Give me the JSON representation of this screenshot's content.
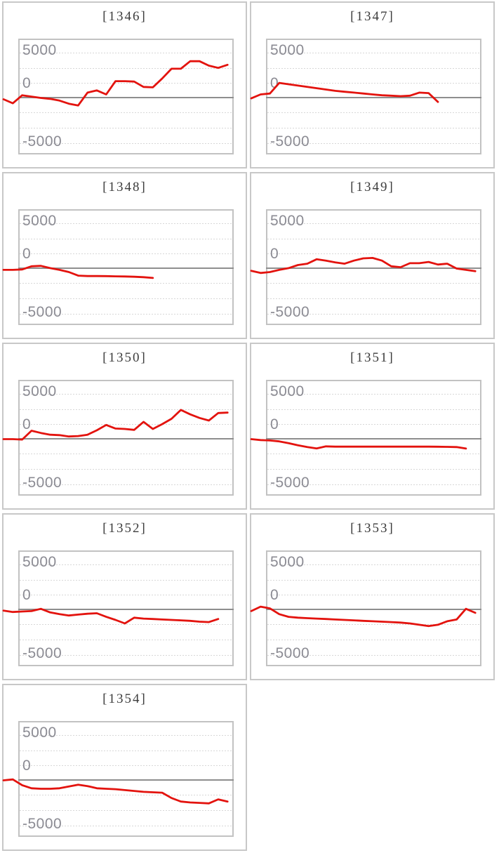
{
  "page": {
    "layout": "grid of 9 machine payout-difference line charts, 2 columns, last row single chart"
  },
  "colors": {
    "series_line": "#e3130e",
    "zero_line": "#8e8e8e",
    "gridline": "#d7d7d7",
    "axis_label": "#8b8b93",
    "title_text": "#3d3d3d",
    "panel_border": "#c8c8c8",
    "plot_border": "#c2c2c2",
    "background": "#ffffff"
  },
  "axis": {
    "y_top": "5000",
    "y_zero": "0",
    "y_bottom": "-5000"
  },
  "chart_data": [
    {
      "type": "line",
      "title": "[1346]",
      "machine": "1346",
      "yticks": [
        5000,
        0,
        -5000
      ],
      "zero_baseline": true,
      "values": [
        -150,
        -600,
        300,
        150,
        0,
        -100,
        -300,
        -650,
        -850,
        600,
        850,
        400,
        1900,
        1900,
        1850,
        1250,
        1200,
        2200,
        3300,
        3300,
        4150,
        4150,
        3650,
        3400,
        3750
      ]
    },
    {
      "type": "line",
      "title": "[1347]",
      "machine": "1347",
      "yticks": [
        5000,
        0,
        -5000
      ],
      "zero_baseline": true,
      "values": [
        -50,
        400,
        500,
        1700,
        1550,
        1400,
        1250,
        1100,
        950,
        800,
        700,
        600,
        500,
        400,
        300,
        250,
        200,
        250,
        600,
        550,
        -450
      ]
    },
    {
      "type": "line",
      "title": "[1348]",
      "machine": "1348",
      "yticks": [
        5000,
        0,
        -5000
      ],
      "zero_baseline": true,
      "values": [
        -150,
        -150,
        -100,
        250,
        300,
        50,
        -150,
        -400,
        -800,
        -850,
        -850,
        -860,
        -880,
        -900,
        -930,
        -980,
        -1060
      ]
    },
    {
      "type": "line",
      "title": "[1349]",
      "machine": "1349",
      "yticks": [
        5000,
        0,
        -5000
      ],
      "zero_baseline": true,
      "values": [
        -250,
        -500,
        -400,
        -150,
        50,
        400,
        550,
        1050,
        900,
        700,
        550,
        900,
        1150,
        1200,
        900,
        250,
        150,
        600,
        600,
        750,
        450,
        550,
        0,
        -150,
        -300
      ]
    },
    {
      "type": "line",
      "title": "[1350]",
      "machine": "1350",
      "yticks": [
        5000,
        0,
        -5000
      ],
      "zero_baseline": true,
      "values": [
        0,
        0,
        -50,
        950,
        700,
        500,
        450,
        300,
        350,
        500,
        1000,
        1600,
        1200,
        1150,
        1050,
        1950,
        1150,
        1700,
        2300,
        3300,
        2800,
        2400,
        2100,
        2950,
        3000
      ]
    },
    {
      "type": "line",
      "title": "[1351]",
      "machine": "1351",
      "yticks": [
        5000,
        0,
        -5000
      ],
      "zero_baseline": true,
      "values": [
        0,
        -100,
        -150,
        -250,
        -450,
        -700,
        -900,
        -1050,
        -820,
        -850,
        -850,
        -850,
        -850,
        -850,
        -850,
        -850,
        -850,
        -850,
        -850,
        -850,
        -860,
        -870,
        -900,
        -1060
      ]
    },
    {
      "type": "line",
      "title": "[1352]",
      "machine": "1352",
      "yticks": [
        5000,
        0,
        -5000
      ],
      "zero_baseline": true,
      "values": [
        -100,
        -250,
        -200,
        -150,
        100,
        -300,
        -500,
        -650,
        -550,
        -450,
        -400,
        -800,
        -1150,
        -1550,
        -900,
        -1000,
        -1050,
        -1100,
        -1150,
        -1200,
        -1250,
        -1350,
        -1400,
        -1050
      ]
    },
    {
      "type": "line",
      "title": "[1353]",
      "machine": "1353",
      "yticks": [
        5000,
        0,
        -5000
      ],
      "zero_baseline": true,
      "values": [
        -150,
        350,
        150,
        -500,
        -800,
        -900,
        -950,
        -1000,
        -1050,
        -1100,
        -1150,
        -1200,
        -1250,
        -1300,
        -1350,
        -1400,
        -1450,
        -1550,
        -1700,
        -1850,
        -1700,
        -1300,
        -1100,
        100,
        -350
      ]
    },
    {
      "type": "line",
      "title": "[1354]",
      "machine": "1354",
      "yticks": [
        5000,
        0,
        -5000
      ],
      "zero_baseline": true,
      "values": [
        0,
        100,
        -550,
        -900,
        -950,
        -950,
        -900,
        -700,
        -500,
        -650,
        -900,
        -950,
        -1000,
        -1100,
        -1200,
        -1300,
        -1350,
        -1400,
        -2000,
        -2400,
        -2500,
        -2550,
        -2600,
        -2150,
        -2400
      ]
    }
  ]
}
